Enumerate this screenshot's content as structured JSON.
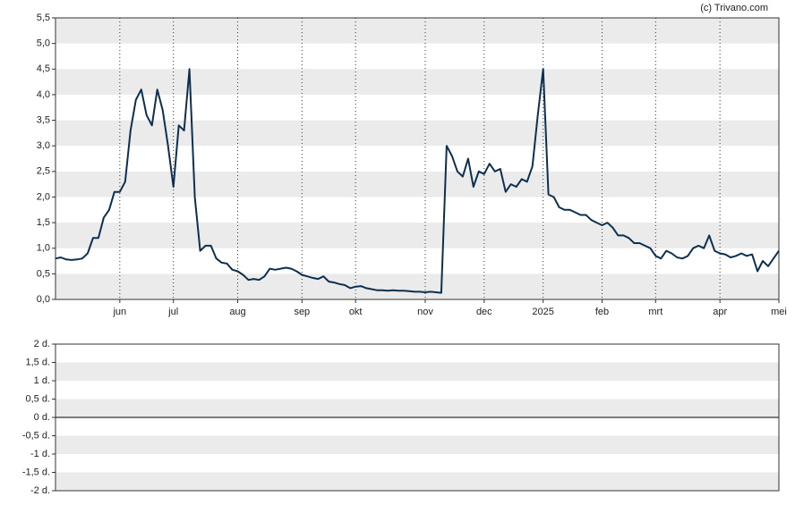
{
  "chart_data": [
    {
      "type": "line",
      "source": "(c) Trivano.com",
      "categories": [
        null,
        null,
        null,
        null,
        null,
        null,
        null,
        null,
        null,
        null,
        null,
        null,
        "jun",
        null,
        null,
        null,
        null,
        null,
        null,
        null,
        null,
        null,
        "jul",
        null,
        null,
        null,
        null,
        null,
        null,
        null,
        null,
        null,
        null,
        null,
        "aug",
        null,
        null,
        null,
        null,
        null,
        null,
        null,
        null,
        null,
        null,
        null,
        "sep",
        null,
        null,
        null,
        null,
        null,
        null,
        null,
        null,
        null,
        "okt",
        null,
        null,
        null,
        null,
        null,
        null,
        null,
        null,
        null,
        null,
        null,
        null,
        "nov",
        null,
        null,
        null,
        null,
        null,
        null,
        null,
        null,
        null,
        null,
        "dec",
        null,
        null,
        null,
        null,
        null,
        null,
        null,
        null,
        null,
        null,
        "2025",
        null,
        null,
        null,
        null,
        null,
        null,
        null,
        null,
        null,
        null,
        "feb",
        null,
        null,
        null,
        null,
        null,
        null,
        null,
        null,
        null,
        "mrt",
        null,
        null,
        null,
        null,
        null,
        null,
        null,
        null,
        null,
        null,
        null,
        "apr",
        null,
        null,
        null,
        null,
        null,
        null,
        null,
        null,
        null,
        null,
        "mei"
      ],
      "series": [
        {
          "color": "#0d3050",
          "values": [
            0.8,
            0.82,
            0.78,
            0.77,
            0.78,
            0.8,
            0.9,
            1.2,
            1.2,
            1.6,
            1.75,
            2.1,
            2.1,
            2.3,
            3.3,
            3.9,
            4.1,
            3.6,
            3.4,
            4.1,
            3.7,
            3.0,
            2.2,
            3.4,
            3.3,
            4.5,
            2.0,
            0.95,
            1.05,
            1.05,
            0.8,
            0.72,
            0.7,
            0.58,
            0.55,
            0.48,
            0.38,
            0.4,
            0.38,
            0.45,
            0.6,
            0.58,
            0.6,
            0.62,
            0.6,
            0.55,
            0.48,
            0.45,
            0.42,
            0.4,
            0.45,
            0.35,
            0.33,
            0.3,
            0.28,
            0.22,
            0.25,
            0.26,
            0.22,
            0.2,
            0.18,
            0.18,
            0.17,
            0.18,
            0.17,
            0.17,
            0.16,
            0.15,
            0.15,
            0.14,
            0.15,
            0.14,
            0.13,
            3.0,
            2.8,
            2.5,
            2.4,
            2.75,
            2.2,
            2.5,
            2.45,
            2.65,
            2.5,
            2.55,
            2.1,
            2.25,
            2.2,
            2.35,
            2.3,
            2.6,
            3.6,
            4.5,
            2.05,
            2.0,
            1.8,
            1.75,
            1.75,
            1.7,
            1.65,
            1.65,
            1.55,
            1.5,
            1.45,
            1.5,
            1.4,
            1.25,
            1.25,
            1.2,
            1.1,
            1.1,
            1.05,
            1.0,
            0.85,
            0.8,
            0.95,
            0.9,
            0.82,
            0.8,
            0.85,
            1.0,
            1.05,
            1.0,
            1.25,
            0.95,
            0.9,
            0.88,
            0.82,
            0.85,
            0.9,
            0.85,
            0.88,
            0.55,
            0.75,
            0.65,
            0.8,
            0.95
          ]
        }
      ],
      "ylim": [
        0,
        5.5
      ],
      "yticks": [
        {
          "value": 0,
          "label": "0,0"
        },
        {
          "value": 0.5,
          "label": "0,5"
        },
        {
          "value": 1,
          "label": "1,0"
        },
        {
          "value": 1.5,
          "label": "1,5"
        },
        {
          "value": 2,
          "label": "2,0"
        },
        {
          "value": 2.5,
          "label": "2,5"
        },
        {
          "value": 3,
          "label": "3,0"
        },
        {
          "value": 3.5,
          "label": "3,5"
        },
        {
          "value": 4,
          "label": "4,0"
        },
        {
          "value": 4.5,
          "label": "4,5"
        },
        {
          "value": 5,
          "label": "5,0"
        },
        {
          "value": 5.5,
          "label": "5,5"
        }
      ],
      "grid": true
    },
    {
      "type": "line",
      "ylim": [
        -2,
        2
      ],
      "yticks": [
        {
          "value": -2,
          "label": "-2 d."
        },
        {
          "value": -1.5,
          "label": "-1,5 d."
        },
        {
          "value": -1,
          "label": "-1 d."
        },
        {
          "value": -0.5,
          "label": "-0,5 d."
        },
        {
          "value": 0,
          "label": "0 d."
        },
        {
          "value": 0.5,
          "label": "0,5 d."
        },
        {
          "value": 1,
          "label": "1 d."
        },
        {
          "value": 1.5,
          "label": "1,5 d."
        },
        {
          "value": 2,
          "label": "2 d."
        }
      ],
      "grid": true
    }
  ]
}
